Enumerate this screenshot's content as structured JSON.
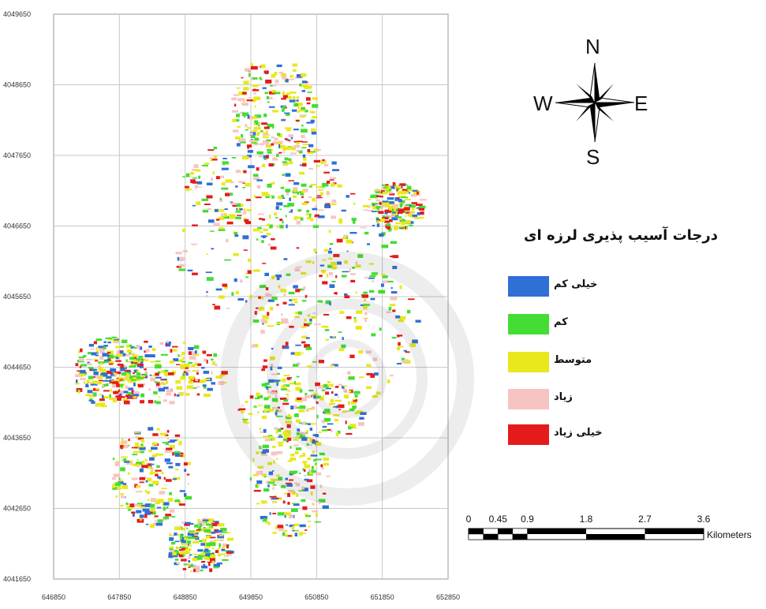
{
  "map": {
    "x_ticks": [
      "646850",
      "647850",
      "648850",
      "649850",
      "650850",
      "651850",
      "652850"
    ],
    "y_ticks": [
      "4049650",
      "4048650",
      "4047650",
      "4046650",
      "4045650",
      "4044650",
      "4043650",
      "4042650",
      "4041650"
    ]
  },
  "legend": {
    "title": "درجات آسیب پذیری لرزه ای",
    "items": [
      {
        "label": "خیلی کم",
        "color": "#2f6fd6"
      },
      {
        "label": "کم",
        "color": "#44dd33"
      },
      {
        "label": "متوسط",
        "color": "#e8e81c"
      },
      {
        "label": "زیاد",
        "color": "#f7c4c4"
      },
      {
        "label": "خیلی زیاد",
        "color": "#e51b1b"
      }
    ]
  },
  "compass": {
    "n": "N",
    "s": "S",
    "e": "E",
    "w": "W"
  },
  "scale_bar": {
    "labels": [
      "0",
      "0.45",
      "0.9",
      "1.8",
      "2.7",
      "3.6"
    ],
    "unit": "Kilometers"
  }
}
